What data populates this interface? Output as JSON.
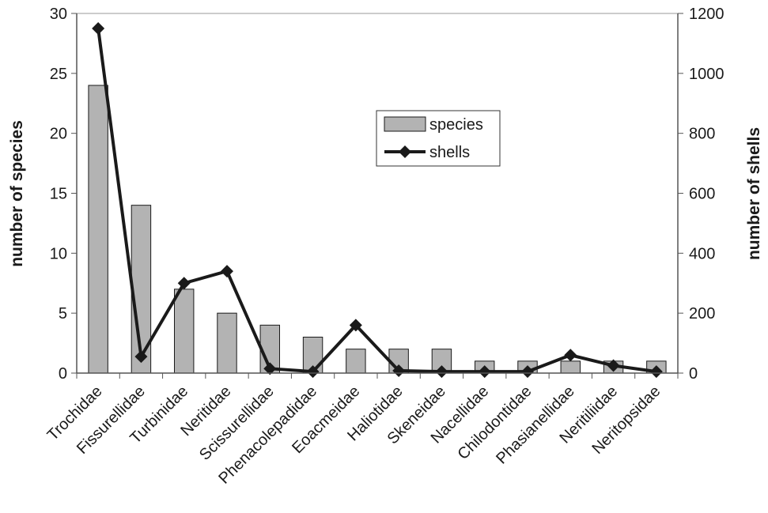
{
  "chart_data": {
    "type": "bar",
    "categories": [
      "Trochidae",
      "Fissurellidae",
      "Turbinidae",
      "Neritidae",
      "Scissurellidae",
      "Phenacolepadidae",
      "Eoacmeidae",
      "Haliotidae",
      "Skeneidae",
      "Nacellidae",
      "Chilodontidae",
      "Phasianellidae",
      "Neritiliidae",
      "Neritopsidae"
    ],
    "series": [
      {
        "name": "species",
        "type": "bar",
        "axis": "left",
        "values": [
          24,
          14,
          7,
          5,
          4,
          3,
          2,
          2,
          2,
          1,
          1,
          1,
          1,
          1
        ]
      },
      {
        "name": "shells",
        "type": "line",
        "axis": "right",
        "values": [
          1150,
          55,
          300,
          340,
          15,
          5,
          160,
          8,
          5,
          5,
          5,
          60,
          25,
          5
        ]
      }
    ],
    "ylabel": "number of species",
    "y2label": "number of shells",
    "ylim": [
      0,
      30
    ],
    "y2lim": [
      0,
      1200
    ],
    "yticks": [
      "0",
      "5",
      "10",
      "15",
      "20",
      "25",
      "30"
    ],
    "y2ticks": [
      "0",
      "200",
      "400",
      "600",
      "800",
      "1000",
      "1200"
    ],
    "legend_position": "upper-center",
    "colors": {
      "bar_fill": "#b3b3b3",
      "bar_stroke": "#1a1a1a",
      "line": "#1a1a1a",
      "axis": "#555555"
    }
  }
}
